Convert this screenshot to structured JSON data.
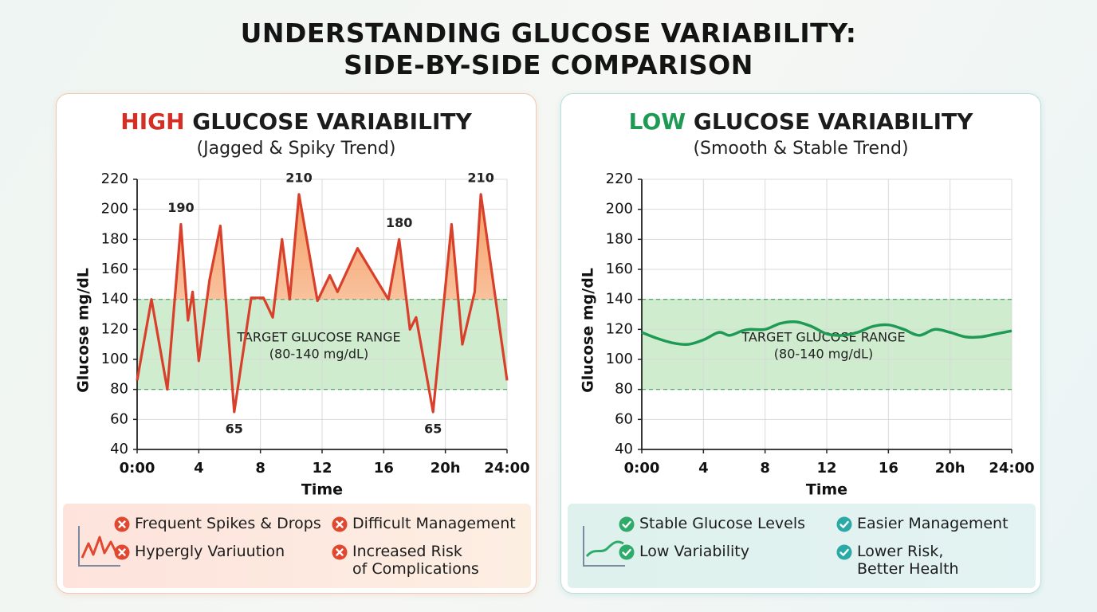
{
  "title_lines": [
    "UNDERSTANDING GLUCOSE VARIABILITY:",
    "SIDE-BY-SIDE COMPARISON"
  ],
  "chart_data": [
    {
      "type": "line",
      "title_accent": "HIGH",
      "accent_color": "#d42f25",
      "title": "GLUCOSE VARIABILITY",
      "subtitle": "(Jagged & Spiky Trend)",
      "x_label": "Time",
      "y_label": "Glucose mg/dL",
      "xlim": [
        0,
        24
      ],
      "xticks": [
        {
          "value": 0,
          "label": "0:00"
        },
        4,
        8,
        12,
        16,
        {
          "value": 20,
          "label": "20h"
        },
        {
          "value": 24,
          "label": "24:00"
        }
      ],
      "ylim": [
        40,
        220
      ],
      "yticks": [
        40,
        60,
        80,
        100,
        120,
        140,
        160,
        180,
        200,
        220
      ],
      "grid": true,
      "band": [
        80,
        140
      ],
      "band_label": "TARGET GLUCOSE RANGE",
      "band_sublabel": "(80-140 mg/dL)",
      "smooth": false,
      "area_color": "#f59a5e",
      "series": [
        {
          "color": "#d9402b",
          "x": [
            0,
            0.93,
            1.96,
            2.84,
            3.3,
            3.6,
            4.0,
            4.7,
            5.4,
            6.3,
            7.4,
            8.2,
            8.8,
            9.4,
            9.9,
            10.5,
            11.7,
            12.5,
            13.0,
            14.3,
            16.3,
            17.0,
            17.7,
            18.1,
            19.2,
            20.4,
            21.1,
            21.9,
            22.3,
            24
          ],
          "values": [
            86,
            140,
            80,
            190,
            126,
            145,
            99,
            153,
            189,
            65,
            141,
            141,
            128,
            180,
            140,
            210,
            139,
            156,
            145,
            174,
            140,
            180,
            120,
            128,
            65,
            190,
            110,
            145,
            210,
            86
          ],
          "value_labels": [
            null,
            null,
            null,
            "190",
            null,
            null,
            null,
            null,
            null,
            "65",
            null,
            null,
            null,
            null,
            null,
            "210",
            null,
            null,
            null,
            null,
            null,
            "180",
            null,
            null,
            "65",
            null,
            null,
            null,
            "210",
            null
          ]
        }
      ]
    },
    {
      "type": "line",
      "title_accent": "LOW",
      "accent_color": "#1f9a55",
      "title": "GLUCOSE VARIABILITY",
      "subtitle": "(Smooth & Stable Trend)",
      "x_label": "Time",
      "y_label": "Glucose mg/dL",
      "xlim": [
        0,
        24
      ],
      "xticks": [
        {
          "value": 0,
          "label": "0:00"
        },
        4,
        8,
        12,
        16,
        {
          "value": 20,
          "label": "20h"
        },
        {
          "value": 24,
          "label": "24:00"
        }
      ],
      "ylim": [
        40,
        220
      ],
      "yticks": [
        40,
        60,
        80,
        100,
        120,
        140,
        160,
        180,
        200,
        220
      ],
      "grid": true,
      "band": [
        80,
        140
      ],
      "band_label": "TARGET GLUCOSE RANGE",
      "band_sublabel": "(80-140 mg/dL)",
      "smooth": true,
      "series": [
        {
          "color": "#1f9a55",
          "x": [
            0,
            1,
            2,
            3,
            4,
            5,
            5.7,
            6.5,
            7,
            8,
            9,
            10,
            11,
            12,
            13,
            14,
            15,
            16,
            17,
            18,
            19,
            20,
            21,
            22,
            23,
            24
          ],
          "values": [
            118,
            114,
            111,
            110,
            113,
            118,
            116,
            119,
            120,
            120,
            124,
            125,
            122,
            117,
            116,
            118,
            122,
            123,
            120,
            116,
            120,
            118,
            115,
            115,
            117,
            119
          ]
        }
      ]
    }
  ],
  "panels": [
    {
      "features": [
        {
          "text": "Frequent Spikes & Drops",
          "color": "#e0492f"
        },
        {
          "text": "Difficult Management",
          "color": "#e0492f"
        },
        {
          "text": "Hypergly Variuution",
          "color": "#e0492f"
        },
        {
          "text": "Increased Risk\nof Complications",
          "color": "#e0492f"
        }
      ]
    },
    {
      "features": [
        {
          "text": "Stable Glucose Levels",
          "color": "#2eaa6a"
        },
        {
          "text": "Easier Management",
          "color": "#2aa9a6"
        },
        {
          "text": "Low Variability",
          "color": "#2eaa6a"
        },
        {
          "text": "Lower Risk,\nBetter Health",
          "color": "#2aa9a6"
        }
      ]
    }
  ]
}
